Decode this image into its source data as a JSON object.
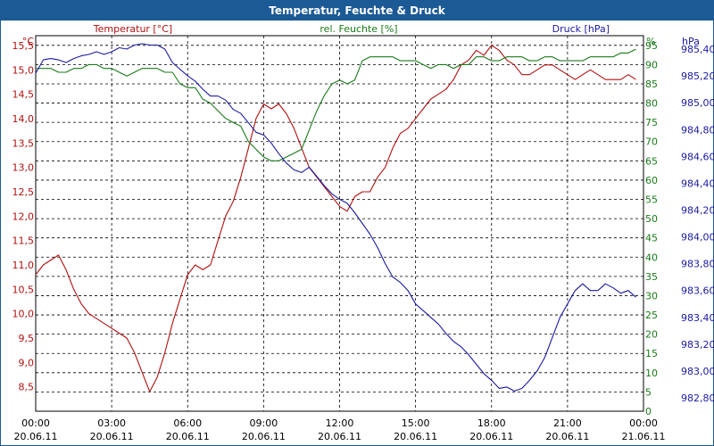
{
  "title": "Temperatur, Feuchte & Druck",
  "colors": {
    "temperature": "#b01010",
    "humidity": "#1a7a1a",
    "pressure": "#1a1aa0",
    "header": "#1c5a96"
  },
  "chart_data": {
    "type": "line",
    "title": "Temperatur, Feuchte & Druck",
    "x_ticks": [
      {
        "time": "00:00",
        "date": "20.06.11"
      },
      {
        "time": "03:00",
        "date": "20.06.11"
      },
      {
        "time": "06:00",
        "date": "20.06.11"
      },
      {
        "time": "09:00",
        "date": "20.06.11"
      },
      {
        "time": "12:00",
        "date": "20.06.11"
      },
      {
        "time": "15:00",
        "date": "20.06.11"
      },
      {
        "time": "18:00",
        "date": "20.06.11"
      },
      {
        "time": "21:00",
        "date": "20.06.11"
      },
      {
        "time": "00:00",
        "date": "21.06.11"
      }
    ],
    "xlim": [
      0,
      24
    ],
    "axes": {
      "temperature": {
        "label": "Temperatur [°C]",
        "unit": "°C",
        "ylim": [
          8.0,
          15.7
        ],
        "ticks": [
          "8,5",
          "9,0",
          "9,5",
          "10,0",
          "10,5",
          "11,0",
          "11,5",
          "12,0",
          "12,5",
          "13,0",
          "13,5",
          "14,0",
          "14,5",
          "15,0",
          "15,5"
        ]
      },
      "humidity": {
        "label": "rel. Feuchte [%]",
        "unit": "%",
        "ylim": [
          0,
          97.5
        ],
        "ticks": [
          "0",
          "5",
          "10",
          "15",
          "20",
          "25",
          "30",
          "35",
          "40",
          "45",
          "50",
          "55",
          "60",
          "65",
          "70",
          "75",
          "80",
          "85",
          "90",
          "95"
        ]
      },
      "pressure": {
        "label": "Druck [hPa]",
        "unit": "hPa",
        "ylim": [
          982.7,
          985.5
        ],
        "ticks": [
          "982,80",
          "983,00",
          "983,20",
          "983,40",
          "983,60",
          "983,80",
          "984,00",
          "984,20",
          "984,40",
          "984,60",
          "984,80",
          "985,00",
          "985,20",
          "985,40"
        ]
      }
    },
    "series": [
      {
        "name": "Temperatur",
        "axis": "temperature",
        "color": "#b01010",
        "x": [
          0,
          0.3,
          0.6,
          0.9,
          1.2,
          1.5,
          1.8,
          2.1,
          2.4,
          2.7,
          3.0,
          3.3,
          3.6,
          3.9,
          4.2,
          4.5,
          4.8,
          5.1,
          5.4,
          5.7,
          6.0,
          6.3,
          6.6,
          6.9,
          7.2,
          7.5,
          7.8,
          8.1,
          8.4,
          8.7,
          9.0,
          9.3,
          9.6,
          9.9,
          10.2,
          10.5,
          10.8,
          11.1,
          11.4,
          11.7,
          12.0,
          12.3,
          12.6,
          12.9,
          13.2,
          13.5,
          13.8,
          14.1,
          14.4,
          14.7,
          15.0,
          15.3,
          15.6,
          15.9,
          16.2,
          16.5,
          16.8,
          17.1,
          17.4,
          17.7,
          18.0,
          18.3,
          18.6,
          18.9,
          19.2,
          19.5,
          19.8,
          20.1,
          20.4,
          20.7,
          21.0,
          21.3,
          21.6,
          21.9,
          22.2,
          22.5,
          22.8,
          23.1,
          23.4,
          23.7
        ],
        "values": [
          10.8,
          11.0,
          11.1,
          11.2,
          10.9,
          10.5,
          10.2,
          10.0,
          9.9,
          9.8,
          9.7,
          9.6,
          9.5,
          9.2,
          8.8,
          8.4,
          8.7,
          9.2,
          9.8,
          10.3,
          10.8,
          11.0,
          10.9,
          11.0,
          11.5,
          12.0,
          12.3,
          12.8,
          13.4,
          14.0,
          14.3,
          14.2,
          14.3,
          14.1,
          13.8,
          13.4,
          13.0,
          12.8,
          12.6,
          12.4,
          12.2,
          12.1,
          12.4,
          12.5,
          12.5,
          12.8,
          13.0,
          13.4,
          13.7,
          13.8,
          14.0,
          14.2,
          14.4,
          14.5,
          14.6,
          14.8,
          15.1,
          15.2,
          15.4,
          15.3,
          15.5,
          15.4,
          15.2,
          15.1,
          14.9,
          14.9,
          15.0,
          15.1,
          15.1,
          15.0,
          14.9,
          14.8,
          14.9,
          15.0,
          14.9,
          14.8,
          14.8,
          14.8,
          14.9,
          14.8
        ]
      },
      {
        "name": "rel. Feuchte",
        "axis": "humidity",
        "color": "#1a7a1a",
        "x": [
          0,
          0.3,
          0.6,
          0.9,
          1.2,
          1.5,
          1.8,
          2.1,
          2.4,
          2.7,
          3.0,
          3.3,
          3.6,
          3.9,
          4.2,
          4.5,
          4.8,
          5.1,
          5.4,
          5.7,
          6.0,
          6.3,
          6.6,
          6.9,
          7.2,
          7.5,
          7.8,
          8.1,
          8.4,
          8.7,
          9.0,
          9.3,
          9.6,
          9.9,
          10.2,
          10.5,
          10.8,
          11.1,
          11.4,
          11.7,
          12.0,
          12.3,
          12.6,
          12.9,
          13.2,
          13.5,
          13.8,
          14.1,
          14.4,
          14.7,
          15.0,
          15.3,
          15.6,
          15.9,
          16.2,
          16.5,
          16.8,
          17.1,
          17.4,
          17.7,
          18.0,
          18.3,
          18.6,
          18.9,
          19.2,
          19.5,
          19.8,
          20.1,
          20.4,
          20.7,
          21.0,
          21.3,
          21.6,
          21.9,
          22.2,
          22.5,
          22.8,
          23.1,
          23.4,
          23.7
        ],
        "values": [
          89,
          89,
          89,
          88,
          88,
          89,
          89,
          90,
          90,
          89,
          89,
          88,
          87,
          88,
          89,
          89,
          89,
          88,
          88,
          85,
          84,
          84,
          81,
          80,
          78,
          76,
          75,
          74,
          70,
          68,
          66,
          65,
          65,
          66,
          67,
          68,
          73,
          78,
          82,
          85,
          86,
          85,
          86,
          91,
          92,
          92,
          92,
          92,
          91,
          91,
          91,
          90,
          89,
          90,
          90,
          89,
          90,
          90,
          92,
          92,
          91,
          91,
          92,
          92,
          92,
          91,
          91,
          92,
          92,
          91,
          91,
          91,
          91,
          92,
          92,
          92,
          92,
          93,
          93,
          94
        ]
      },
      {
        "name": "Druck",
        "axis": "pressure",
        "color": "#1a1aa0",
        "x": [
          0,
          0.3,
          0.6,
          0.9,
          1.2,
          1.5,
          1.8,
          2.1,
          2.4,
          2.7,
          3.0,
          3.3,
          3.6,
          3.9,
          4.2,
          4.5,
          4.8,
          5.1,
          5.4,
          5.7,
          6.0,
          6.3,
          6.6,
          6.9,
          7.2,
          7.5,
          7.8,
          8.1,
          8.4,
          8.7,
          9.0,
          9.3,
          9.6,
          9.9,
          10.2,
          10.5,
          10.8,
          11.1,
          11.4,
          11.7,
          12.0,
          12.3,
          12.6,
          12.9,
          13.2,
          13.5,
          13.8,
          14.1,
          14.4,
          14.7,
          15.0,
          15.3,
          15.6,
          15.9,
          16.2,
          16.5,
          16.8,
          17.1,
          17.4,
          17.7,
          18.0,
          18.3,
          18.6,
          18.9,
          19.2,
          19.5,
          19.8,
          20.1,
          20.4,
          20.7,
          21.0,
          21.3,
          21.6,
          21.9,
          22.2,
          22.5,
          22.8,
          23.1,
          23.4,
          23.7
        ],
        "values": [
          985.22,
          985.32,
          985.33,
          985.32,
          985.3,
          985.33,
          985.35,
          985.36,
          985.38,
          985.36,
          985.38,
          985.41,
          985.4,
          985.43,
          985.44,
          985.43,
          985.43,
          985.4,
          985.3,
          985.25,
          985.2,
          985.16,
          985.1,
          985.05,
          985.05,
          985.02,
          984.95,
          984.92,
          984.85,
          984.78,
          984.76,
          984.7,
          984.62,
          984.55,
          984.5,
          984.48,
          984.52,
          984.45,
          984.38,
          984.32,
          984.28,
          984.25,
          984.18,
          984.1,
          984.02,
          983.92,
          983.8,
          983.7,
          983.66,
          983.6,
          983.5,
          983.45,
          983.4,
          983.35,
          983.28,
          983.22,
          983.18,
          983.12,
          983.05,
          982.98,
          982.93,
          982.87,
          982.88,
          982.85,
          982.87,
          982.93,
          983.0,
          983.1,
          983.25,
          983.4,
          983.5,
          983.6,
          983.65,
          983.6,
          983.6,
          983.65,
          983.62,
          983.58,
          983.6,
          983.55
        ]
      }
    ]
  }
}
